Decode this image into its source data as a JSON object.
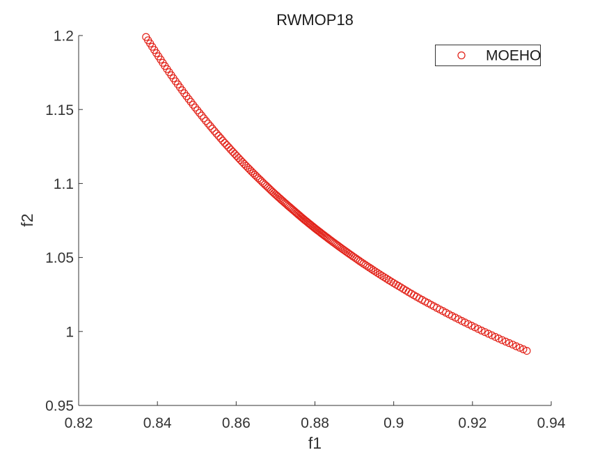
{
  "figure": {
    "background": "#ffffff"
  },
  "chart_data": {
    "type": "scatter",
    "title": "RWMOP18",
    "xlabel": "f1",
    "ylabel": "f2",
    "xlim": [
      0.82,
      0.94
    ],
    "ylim": [
      0.95,
      1.2
    ],
    "xticks": [
      0.82,
      0.84,
      0.86,
      0.88,
      0.9,
      0.92,
      0.94
    ],
    "xtick_labels": [
      "0.82",
      "0.84",
      "0.86",
      "0.88",
      "0.9",
      "0.92",
      "0.94"
    ],
    "yticks": [
      0.95,
      1.0,
      1.05,
      1.1,
      1.15,
      1.2
    ],
    "ytick_labels": [
      "0.95",
      "1",
      "1.05",
      "1.1",
      "1.15",
      "1.2"
    ],
    "grid": false,
    "box": false,
    "axis_color": "#333333",
    "legend_position": "northeast",
    "legend_border_color": "#333333",
    "legend_background": "#ffffff",
    "series": [
      {
        "name": "MOEHO",
        "marker": "o",
        "color": "#e2231a",
        "marker_count": 190,
        "points": [
          [
            0.8371,
            1.199
          ],
          [
            0.8396,
            1.1886
          ],
          [
            0.8421,
            1.1786
          ],
          [
            0.8446,
            1.1691
          ],
          [
            0.8471,
            1.16
          ],
          [
            0.8496,
            1.1513
          ],
          [
            0.8521,
            1.143
          ],
          [
            0.8546,
            1.135
          ],
          [
            0.8571,
            1.1274
          ],
          [
            0.8596,
            1.1201
          ],
          [
            0.8621,
            1.113
          ],
          [
            0.8646,
            1.1063
          ],
          [
            0.8671,
            1.0998
          ],
          [
            0.8696,
            1.0935
          ],
          [
            0.8721,
            1.0875
          ],
          [
            0.8746,
            1.0817
          ],
          [
            0.8771,
            1.076
          ],
          [
            0.8796,
            1.0706
          ],
          [
            0.8821,
            1.0654
          ],
          [
            0.8846,
            1.0604
          ],
          [
            0.8871,
            1.0555
          ],
          [
            0.8896,
            1.0508
          ],
          [
            0.8921,
            1.0462
          ],
          [
            0.8946,
            1.0418
          ],
          [
            0.8971,
            1.0375
          ],
          [
            0.8996,
            1.0333
          ],
          [
            0.9021,
            1.0293
          ],
          [
            0.9046,
            1.0253
          ],
          [
            0.9071,
            1.0215
          ],
          [
            0.9096,
            1.0179
          ],
          [
            0.9121,
            1.0143
          ],
          [
            0.9146,
            1.0108
          ],
          [
            0.9171,
            1.0074
          ],
          [
            0.9196,
            1.0041
          ],
          [
            0.9221,
            1.0009
          ],
          [
            0.9246,
            0.9978
          ],
          [
            0.9271,
            0.9947
          ],
          [
            0.9296,
            0.9918
          ],
          [
            0.9321,
            0.9889
          ],
          [
            0.9338,
            0.9869
          ]
        ]
      }
    ]
  }
}
